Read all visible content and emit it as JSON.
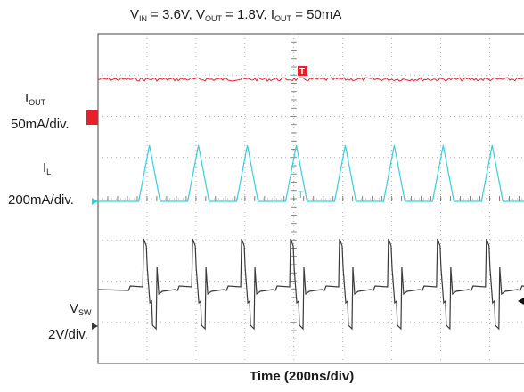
{
  "chart_data": {
    "type": "line",
    "title_parts": [
      {
        "text": "V",
        "sub": "IN",
        "rest": " = 3.6V, "
      },
      {
        "text": "V",
        "sub": "OUT",
        "rest": " = 1.8V, "
      },
      {
        "text": "I",
        "sub": "OUT",
        "rest": " = 50mA"
      }
    ],
    "xlabel": "Time (200ns/div)",
    "grid": true,
    "divisions": {
      "x": 10,
      "y": 8
    },
    "series": [
      {
        "name_main": "I",
        "name_sub": "OUT",
        "scale": "50mA/div.",
        "color": "#e8202a",
        "marker": "T",
        "shape": "flat"
      },
      {
        "name_main": "I",
        "name_sub": "L",
        "scale": "200mA/div.",
        "color": "#35d0e0",
        "marker": "T",
        "shape": "triangle",
        "peak_times_div": [
          1.05,
          2.05,
          3.05,
          4.05,
          5.05,
          6.05,
          7.05,
          8.05,
          9.05
        ]
      },
      {
        "name_main": "V",
        "name_sub": "SW",
        "scale": "2V/div.",
        "color": "#3a3a3a",
        "shape": "switch",
        "edge_times_div": [
          0.95,
          1.95,
          2.95,
          3.95,
          4.95,
          5.95,
          6.95,
          7.95,
          8.95
        ]
      }
    ]
  }
}
